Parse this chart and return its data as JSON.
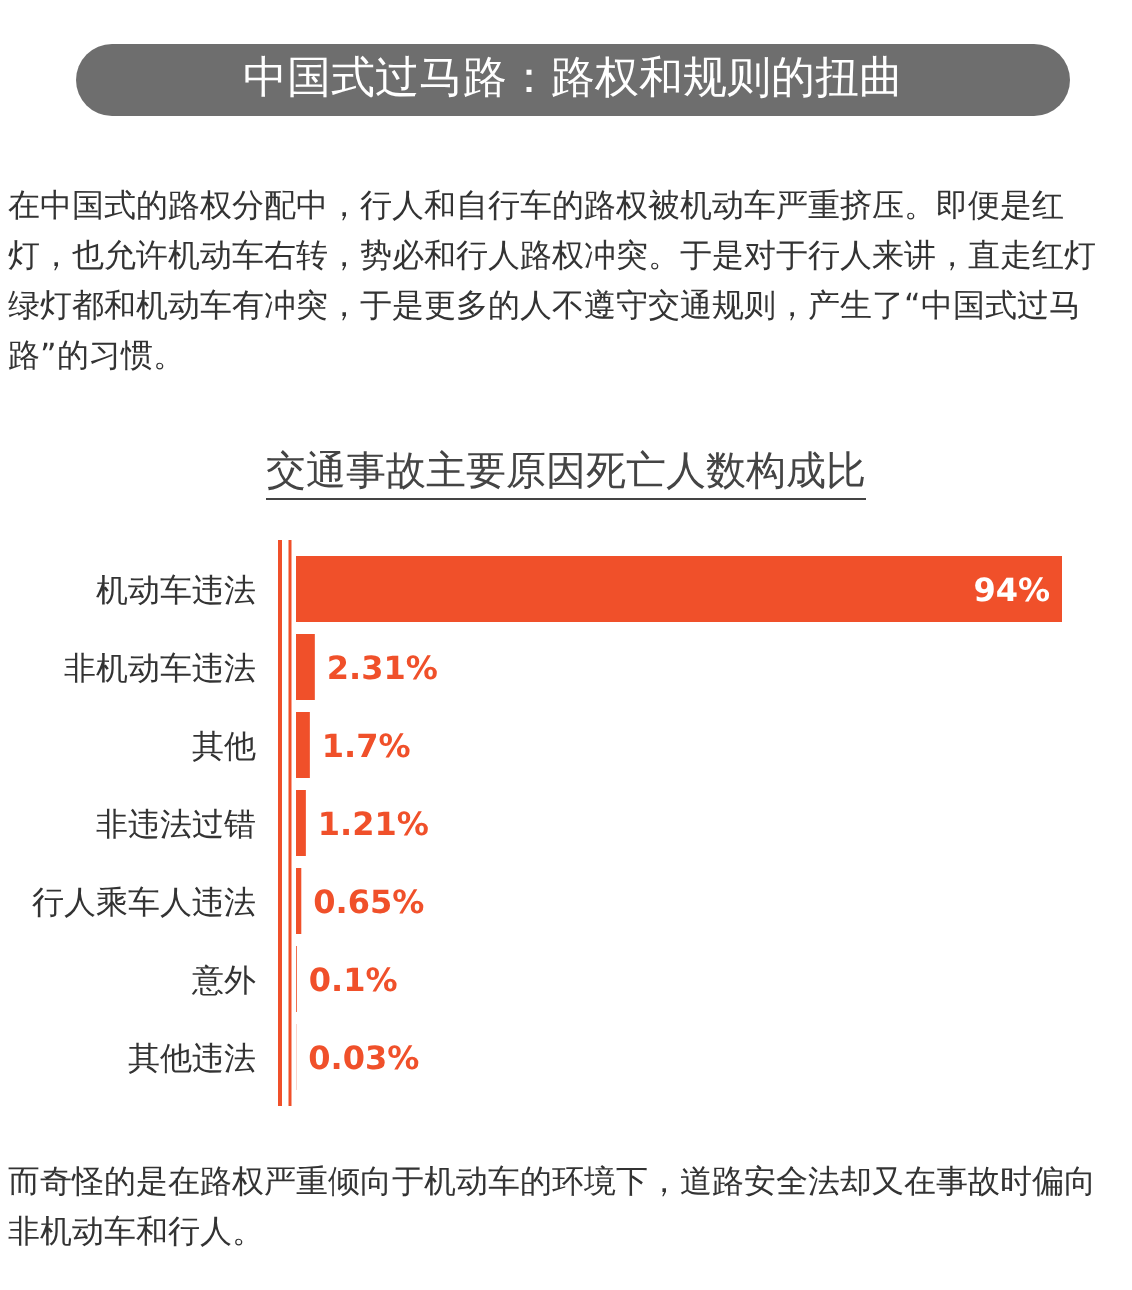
{
  "chart_data": {
    "type": "bar",
    "orientation": "horizontal",
    "title": "交通事故主要原因死亡人数构成比",
    "annotations": [
      "中国式过马路：路权和规则的扭曲",
      "在中国式的路权分配中，行人和自行车的路权被机动车严重挤压。即便是红灯，也允许机动车右转，势必和行人路权冲突。于是对于行人来讲，直走红灯绿灯都和机动车有冲突，于是更多的人不遵守交通规则，产生了“中国式过马路”的习惯。",
      "而奇怪的是在路权严重倾向于机动车的环境下，道路安全法却又在事故时偏向非机动车和行人。"
    ],
    "categories": [
      "机动车违法",
      "非机动车违法",
      "其他",
      "非违法过错",
      "行人乘车人违法",
      "意外",
      "其他违法"
    ],
    "values": [
      94,
      2.31,
      1.7,
      1.21,
      0.65,
      0.1,
      0.03
    ],
    "value_labels": [
      "94%",
      "2.31%",
      "1.7%",
      "1.21%",
      "0.65%",
      "0.1%",
      "0.03%"
    ],
    "color": "#f0502a"
  }
}
